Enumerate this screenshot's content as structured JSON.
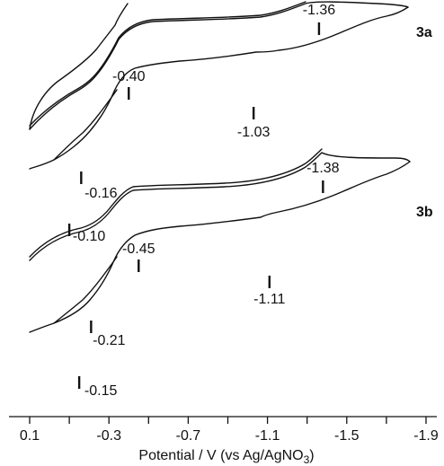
{
  "chart_data": {
    "type": "line",
    "title": "",
    "xlabel": "Potential / V (vs Ag/AgNO",
    "xlabel_sub": "3",
    "xlabel_close": ")",
    "ylabel": "",
    "xlim": [
      0.1,
      -1.9
    ],
    "x_ticks": [
      0.1,
      -0.1,
      -0.3,
      -0.5,
      -0.7,
      -0.9,
      -1.1,
      -1.3,
      -1.5,
      -1.7,
      -1.9
    ],
    "x_tick_labels": [
      "0.1",
      "-0.3",
      "-0.7",
      "-1.1",
      "-1.5",
      "-1.9"
    ],
    "grid": false,
    "series": [
      {
        "name": "3a",
        "peaks": [
          {
            "potential": -1.36,
            "label": "-1.36"
          },
          {
            "potential": -0.4,
            "label": "-0.40"
          },
          {
            "potential": -1.03,
            "label": "-1.03"
          },
          {
            "potential": -0.16,
            "label": "-0.16"
          },
          {
            "potential": -0.1,
            "label": "-0.10"
          }
        ]
      },
      {
        "name": "3b",
        "peaks": [
          {
            "potential": -1.38,
            "label": "-1.38"
          },
          {
            "potential": -0.45,
            "label": "-0.45"
          },
          {
            "potential": -1.11,
            "label": "-1.11"
          },
          {
            "potential": -0.21,
            "label": "-0.21"
          },
          {
            "potential": -0.15,
            "label": "-0.15"
          }
        ]
      }
    ]
  }
}
